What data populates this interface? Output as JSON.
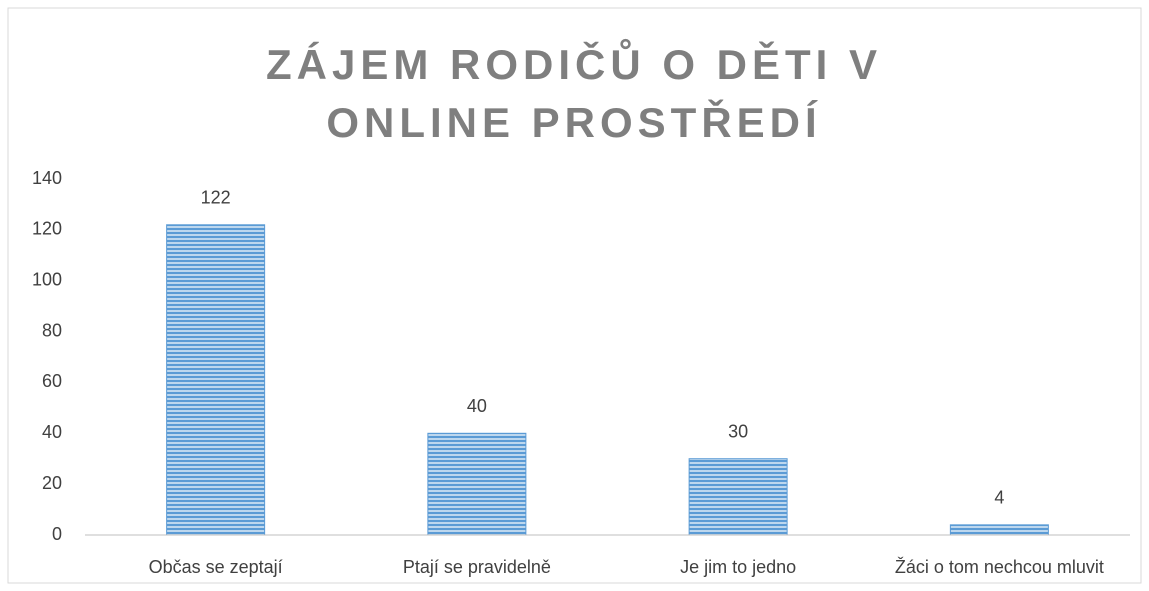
{
  "chart_data": {
    "type": "bar",
    "title": "ZÁJEM RODIČŮ O DĚTI V ONLINE PROSTŘEDÍ",
    "categories": [
      "Občas se zeptají",
      "Ptají se pravidelně",
      "Je jim to jedno",
      "Žáci o tom nechcou mluvit"
    ],
    "values": [
      122,
      40,
      30,
      4
    ],
    "color": "#5b9bd5",
    "ylim": [
      0,
      140
    ],
    "yticks": [
      0,
      20,
      40,
      60,
      80,
      100,
      120,
      140
    ],
    "grid": false
  }
}
